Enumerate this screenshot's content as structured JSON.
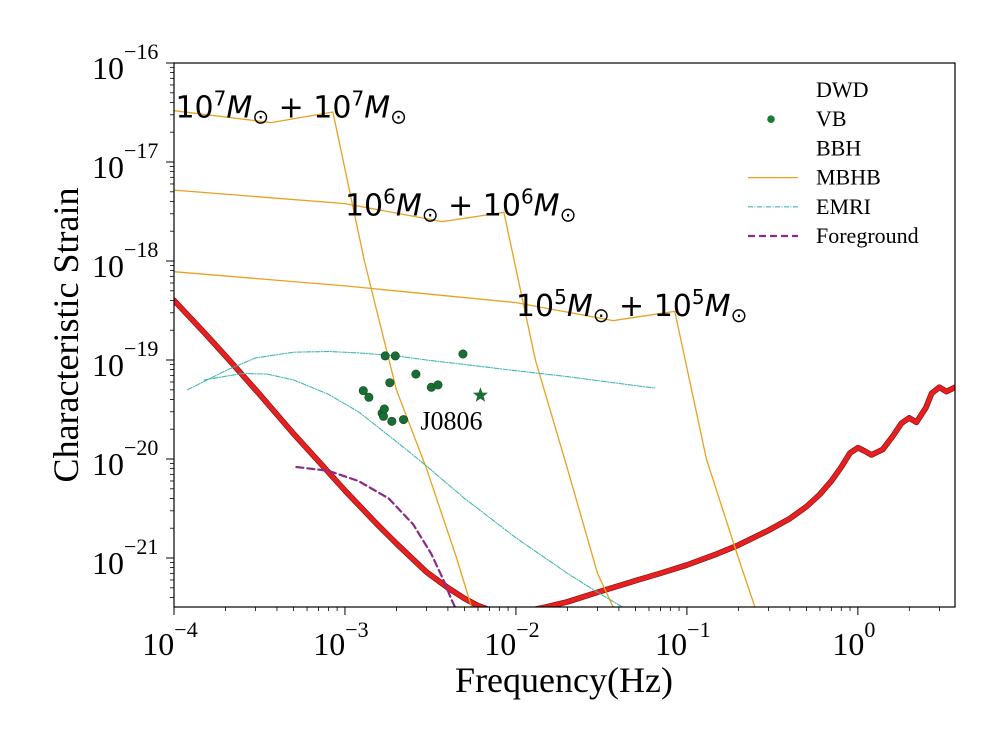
{
  "chart_data": {
    "type": "line",
    "title": "",
    "xlabel": "Frequency(Hz)",
    "ylabel": "Characteristic Strain",
    "xscale": "log",
    "yscale": "log",
    "xlim": [
      0.0001,
      3.7
    ],
    "ylim": [
      3.2e-22,
      1e-16
    ],
    "grid": false,
    "x_ticks": [
      {
        "value": 0.0001,
        "base": "10",
        "exp": "−4"
      },
      {
        "value": 0.001,
        "base": "10",
        "exp": "−3"
      },
      {
        "value": 0.01,
        "base": "10",
        "exp": "−2"
      },
      {
        "value": 0.1,
        "base": "10",
        "exp": "−1"
      },
      {
        "value": 1,
        "base": "10",
        "exp": "0"
      }
    ],
    "y_ticks": [
      {
        "value": 1e-16,
        "base": "10",
        "exp": "−16"
      },
      {
        "value": 1e-17,
        "base": "10",
        "exp": "−17"
      },
      {
        "value": 1e-18,
        "base": "10",
        "exp": "−18"
      },
      {
        "value": 1e-19,
        "base": "10",
        "exp": "−19"
      },
      {
        "value": 1e-20,
        "base": "10",
        "exp": "−20"
      },
      {
        "value": 1e-21,
        "base": "10",
        "exp": "−21"
      }
    ],
    "legend": {
      "placement": "top-right",
      "entries": [
        {
          "label": "DWD",
          "marker": "none",
          "color": ""
        },
        {
          "label": "VB",
          "marker": "dot",
          "color": "#1a7a3a"
        },
        {
          "label": "BBH",
          "marker": "none",
          "color": ""
        },
        {
          "label": "MBHB",
          "marker": "solid-line",
          "color": "#e8a020"
        },
        {
          "label": "EMRI",
          "marker": "dashdot-line",
          "color": "#3fb8b0"
        },
        {
          "label": "Foreground",
          "marker": "dashed-line",
          "color": "#8a2a8a"
        }
      ]
    },
    "series": [
      {
        "name": "Sensitivity curve",
        "style": "thick-solid",
        "color": "#e62020",
        "x": [
          0.0001,
          0.00015,
          0.0002,
          0.0003,
          0.0005,
          0.0007,
          0.001,
          0.0015,
          0.002,
          0.003,
          0.004,
          0.005,
          0.006,
          0.007,
          0.008,
          0.009,
          0.01,
          0.012,
          0.015,
          0.02,
          0.03,
          0.05,
          0.07,
          0.1,
          0.15,
          0.2,
          0.3,
          0.4,
          0.5,
          0.6,
          0.7,
          0.8,
          0.9,
          1.0,
          1.1,
          1.2,
          1.4,
          1.6,
          1.8,
          2.0,
          2.2,
          2.5,
          2.7,
          3.0,
          3.3,
          3.7
        ],
        "y": [
          4e-19,
          1.9e-19,
          1.1e-19,
          5e-20,
          1.8e-20,
          9.5e-21,
          4.8e-21,
          2.3e-21,
          1.4e-21,
          7.2e-22,
          5e-22,
          3.9e-22,
          3.3e-22,
          3e-22,
          2.9e-22,
          2.85e-22,
          2.85e-22,
          2.95e-22,
          3.2e-22,
          3.6e-22,
          4.5e-22,
          5.9e-22,
          7e-22,
          8.5e-22,
          1.1e-21,
          1.35e-21,
          1.9e-21,
          2.5e-21,
          3.3e-21,
          4.4e-21,
          6e-21,
          8.3e-21,
          1.15e-20,
          1.3e-20,
          1.2e-20,
          1.1e-20,
          1.25e-20,
          1.7e-20,
          2.3e-20,
          2.6e-20,
          2.35e-20,
          3.3e-20,
          4.6e-20,
          5.3e-20,
          4.8e-20,
          5.3e-20
        ]
      },
      {
        "name": "MBHB 1e7+1e7",
        "style": "solid",
        "color": "#e8a020",
        "x": [
          0.0001,
          0.00037,
          0.00085,
          0.0013,
          0.002,
          0.003,
          0.0045,
          0.0055
        ],
        "y": [
          3.3e-17,
          2.5e-17,
          3.2e-17,
          1e-18,
          5e-20,
          8e-21,
          1e-21,
          3.2e-22
        ]
      },
      {
        "name": "MBHB 1e6+1e6",
        "style": "solid",
        "color": "#e8a020",
        "x": [
          0.0001,
          0.001,
          0.0037,
          0.0085,
          0.013,
          0.02,
          0.03,
          0.037
        ],
        "y": [
          5.2e-18,
          3.8e-18,
          2.5e-18,
          3.1e-18,
          1e-19,
          8e-21,
          7e-22,
          3.2e-22
        ]
      },
      {
        "name": "MBHB 1e5+1e5",
        "style": "solid",
        "color": "#e8a020",
        "x": [
          0.0001,
          0.001,
          0.01,
          0.037,
          0.085,
          0.13,
          0.2,
          0.25
        ],
        "y": [
          7.8e-19,
          5.6e-19,
          3.8e-19,
          2.5e-19,
          3.1e-19,
          1e-20,
          1e-21,
          3.2e-22
        ]
      },
      {
        "name": "EMRI upper",
        "style": "dashdot",
        "color": "#3fb8b0",
        "x": [
          0.00012,
          0.0002,
          0.0003,
          0.0005,
          0.0008,
          0.0012,
          0.002,
          0.003,
          0.005,
          0.01,
          0.02,
          0.04,
          0.065
        ],
        "y": [
          5e-20,
          7.8e-20,
          1.05e-19,
          1.2e-19,
          1.22e-19,
          1.18e-19,
          1.1e-19,
          1e-19,
          9e-20,
          7.8e-20,
          6.8e-20,
          5.8e-20,
          5.2e-20
        ]
      },
      {
        "name": "EMRI lower",
        "style": "dashdot",
        "color": "#3fb8b0",
        "x": [
          0.00015,
          0.00025,
          0.00035,
          0.0005,
          0.0008,
          0.0012,
          0.002,
          0.003,
          0.005,
          0.01,
          0.02,
          0.03,
          0.042
        ],
        "y": [
          6.3e-20,
          7.3e-20,
          7.2e-20,
          6.3e-20,
          4.5e-20,
          3e-20,
          1.5e-20,
          8.5e-21,
          4e-21,
          1.6e-21,
          7e-22,
          4.5e-22,
          3.2e-22
        ]
      },
      {
        "name": "Foreground",
        "style": "dashed",
        "color": "#8a2a8a",
        "x": [
          0.00052,
          0.0008,
          0.0012,
          0.0018,
          0.0025,
          0.0032,
          0.0038,
          0.0042,
          0.0044
        ],
        "y": [
          8.3e-21,
          7.6e-21,
          6e-21,
          4e-21,
          2.2e-21,
          1.1e-21,
          5.8e-22,
          3.8e-22,
          3.2e-22
        ]
      }
    ],
    "scatter": {
      "name": "VB",
      "color": "#1a6e33",
      "points": [
        {
          "x": 0.00128,
          "y": 4.9e-20
        },
        {
          "x": 0.00138,
          "y": 4.2e-20
        },
        {
          "x": 0.00165,
          "y": 2.9e-20
        },
        {
          "x": 0.00168,
          "y": 2.7e-20
        },
        {
          "x": 0.0017,
          "y": 3.2e-20
        },
        {
          "x": 0.00172,
          "y": 1.1e-19
        },
        {
          "x": 0.00183,
          "y": 5.9e-20
        },
        {
          "x": 0.00188,
          "y": 2.4e-20
        },
        {
          "x": 0.00197,
          "y": 1.1e-19
        },
        {
          "x": 0.0022,
          "y": 2.5e-20
        },
        {
          "x": 0.0026,
          "y": 7.2e-20
        },
        {
          "x": 0.0032,
          "y": 5.3e-20
        },
        {
          "x": 0.0035,
          "y": 5.6e-20
        },
        {
          "x": 0.0049,
          "y": 1.15e-19
        }
      ],
      "highlight": {
        "label": "J0806",
        "marker": "star",
        "x": 0.0062,
        "y": 4.4e-20
      }
    },
    "annotations": [
      {
        "text_base": "10",
        "text_exp": "7",
        "x": 0.000102,
        "y": 3.7e-17,
        "label": "10^7 M⊙ + 10^7 M⊙"
      },
      {
        "text_base": "10",
        "text_exp": "6",
        "x": 0.001,
        "y": 3.8e-18,
        "label": "10^6 M⊙ + 10^6 M⊙"
      },
      {
        "text_base": "10",
        "text_exp": "5",
        "x": 0.01,
        "y": 3.7e-19,
        "label": "10^5 M⊙ + 10^5 M⊙"
      }
    ]
  }
}
